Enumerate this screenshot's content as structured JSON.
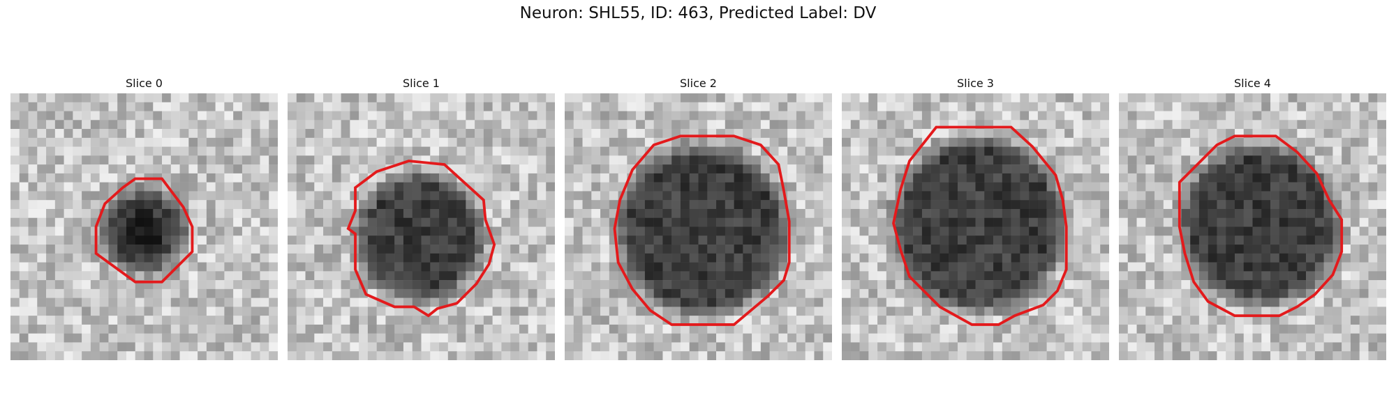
{
  "figure": {
    "title": "Neuron: SHL55, ID: 463, Predicted Label: DV"
  },
  "panels": [
    {
      "label": "Slice 0",
      "contour_color": "#e31a1c",
      "image": "grayscale-microscopy-patch"
    },
    {
      "label": "Slice 1",
      "contour_color": "#e31a1c",
      "image": "grayscale-microscopy-patch"
    },
    {
      "label": "Slice 2",
      "contour_color": "#e31a1c",
      "image": "grayscale-microscopy-patch"
    },
    {
      "label": "Slice 3",
      "contour_color": "#e31a1c",
      "image": "grayscale-microscopy-patch"
    },
    {
      "label": "Slice 4",
      "contour_color": "#e31a1c",
      "image": "grayscale-microscopy-patch"
    }
  ]
}
